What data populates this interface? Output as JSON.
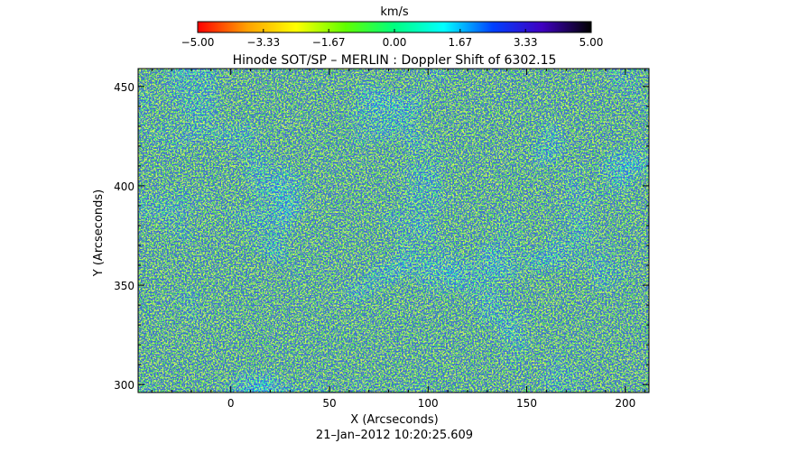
{
  "chart_data": {
    "type": "heatmap",
    "title": "Hinode SOT/SP – MERLIN : Doppler Shift of 6302.15",
    "xlabel": "X (Arcseconds)",
    "ylabel": "Y (Arcseconds)",
    "xlim": [
      -47,
      212
    ],
    "ylim": [
      296,
      459
    ],
    "x_ticks": [
      "0",
      "50",
      "100",
      "150",
      "200"
    ],
    "x_tick_values": [
      0,
      50,
      100,
      150,
      200
    ],
    "y_ticks": [
      "300",
      "350",
      "400",
      "450"
    ],
    "y_tick_values": [
      300,
      350,
      400,
      450
    ],
    "timestamp": "21–Jan–2012 10:20:25.609",
    "colorbar": {
      "label": "km/s",
      "range": [
        -5.0,
        5.0
      ],
      "tick_labels": [
        "−5.00",
        "−3.33",
        "−1.67",
        "0.00",
        "1.67",
        "3.33",
        "5.00"
      ],
      "tick_values": [
        -5.0,
        -3.33,
        -1.67,
        0.0,
        1.67,
        3.33,
        5.0
      ],
      "colors": [
        "#ff0000",
        "#ffa000",
        "#ffff00",
        "#60ff00",
        "#00ff80",
        "#00ffff",
        "#0040ff",
        "#4000c0",
        "#000000"
      ]
    }
  }
}
